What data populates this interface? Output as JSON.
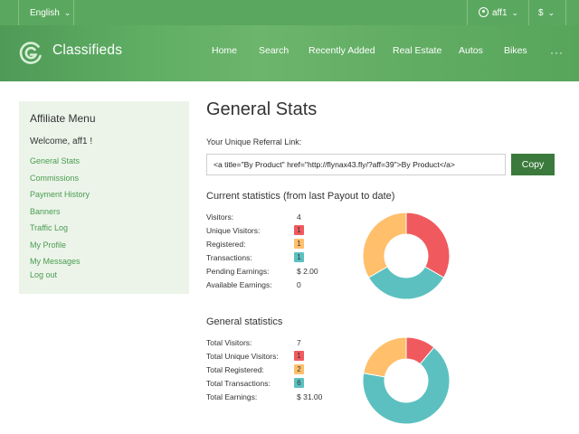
{
  "topbar": {
    "language": "English",
    "user": "aff1",
    "currency": "$"
  },
  "header": {
    "brand": "Classifieds",
    "nav": [
      "Home",
      "Search",
      "Recently Added",
      "Real Estate",
      "Autos",
      "Bikes"
    ],
    "more_icon": "···"
  },
  "sidebar": {
    "title": "Affiliate Menu",
    "welcome": "Welcome, aff1 !",
    "items": [
      "General Stats",
      "Commissions",
      "Payment History",
      "Banners",
      "Traffic Log",
      "My Profile",
      "My Messages",
      "Log out"
    ]
  },
  "main": {
    "title": "General Stats",
    "referral_label": "Your Unique Referral Link:",
    "referral_value": "<a title=\"By Product\" href=\"http://flynax43.fly/?aff=39\">By Product</a>",
    "copy_label": "Copy",
    "current": {
      "title": "Current statistics (from last Payout to date)",
      "rows": [
        {
          "label": "Visitors:",
          "value": "4"
        },
        {
          "label": "Unique Visitors:",
          "value": "1"
        },
        {
          "label": "Registered:",
          "value": "1"
        },
        {
          "label": "Transactions:",
          "value": "1"
        },
        {
          "label": "Pending Earnings:",
          "value": "$ 2.00"
        },
        {
          "label": "Available Earnings:",
          "value": "0"
        }
      ]
    },
    "general": {
      "title": "General statistics",
      "rows": [
        {
          "label": "Total Visitors:",
          "value": "7"
        },
        {
          "label": "Total Unique Visitors:",
          "value": "1"
        },
        {
          "label": "Total Registered:",
          "value": "2"
        },
        {
          "label": "Total Transactions:",
          "value": "6"
        },
        {
          "label": "Total Earnings:",
          "value": "$ 31.00"
        }
      ]
    }
  },
  "colors": {
    "red": "#f05a5e",
    "orange": "#ffbf6b",
    "teal": "#5cc0c0",
    "green": "#5aa85f"
  },
  "chart_data": [
    {
      "type": "pie",
      "categories": [
        "Unique Visitors",
        "Registered",
        "Transactions"
      ],
      "values": [
        1,
        1,
        1
      ],
      "colors": [
        "#f05a5e",
        "#5cc0c0",
        "#ffbf6b"
      ],
      "donut": true
    },
    {
      "type": "pie",
      "categories": [
        "Unique Visitors",
        "Total Transactions",
        "Total Registered"
      ],
      "values": [
        1,
        6,
        2
      ],
      "colors": [
        "#f05a5e",
        "#5cc0c0",
        "#ffbf6b"
      ],
      "donut": true
    }
  ]
}
